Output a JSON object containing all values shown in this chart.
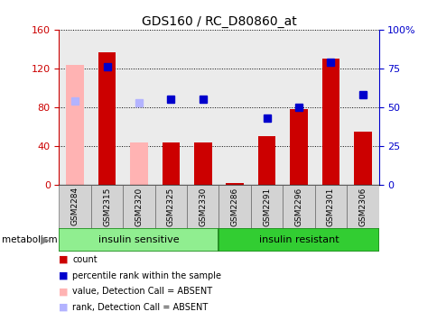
{
  "title": "GDS160 / RC_D80860_at",
  "samples": [
    "GSM2284",
    "GSM2315",
    "GSM2320",
    "GSM2325",
    "GSM2330",
    "GSM2286",
    "GSM2291",
    "GSM2296",
    "GSM2301",
    "GSM2306"
  ],
  "bar_values": [
    null,
    137,
    null,
    44,
    44,
    2,
    50,
    78,
    130,
    55
  ],
  "bar_absent_values": [
    124,
    null,
    44,
    null,
    null,
    null,
    null,
    null,
    null,
    null
  ],
  "rank_values": [
    null,
    76,
    null,
    55,
    55,
    null,
    43,
    50,
    79,
    58
  ],
  "rank_absent_values": [
    54,
    null,
    53,
    null,
    null,
    null,
    null,
    null,
    null,
    null
  ],
  "group1_label": "insulin sensitive",
  "group2_label": "insulin resistant",
  "metabolism_label": "metabolism",
  "left_ylim": [
    0,
    160
  ],
  "right_ylim": [
    0,
    100
  ],
  "left_yticks": [
    0,
    40,
    80,
    120,
    160
  ],
  "right_yticks": [
    0,
    25,
    50,
    75,
    100
  ],
  "right_yticklabels": [
    "0",
    "25",
    "50",
    "75",
    "100%"
  ],
  "bar_color": "#cc0000",
  "bar_absent_color": "#ffb3b3",
  "rank_color": "#0000cc",
  "rank_absent_color": "#b3b3ff",
  "group1_color": "#90ee90",
  "group2_color": "#32cd32",
  "plot_bg_color": "#ebebeb",
  "legend_items": [
    {
      "label": "count",
      "color": "#cc0000",
      "marker": "s"
    },
    {
      "label": "percentile rank within the sample",
      "color": "#0000cc",
      "marker": "s"
    },
    {
      "label": "value, Detection Call = ABSENT",
      "color": "#ffb3b3",
      "marker": "s"
    },
    {
      "label": "rank, Detection Call = ABSENT",
      "color": "#b3b3ff",
      "marker": "s"
    }
  ]
}
